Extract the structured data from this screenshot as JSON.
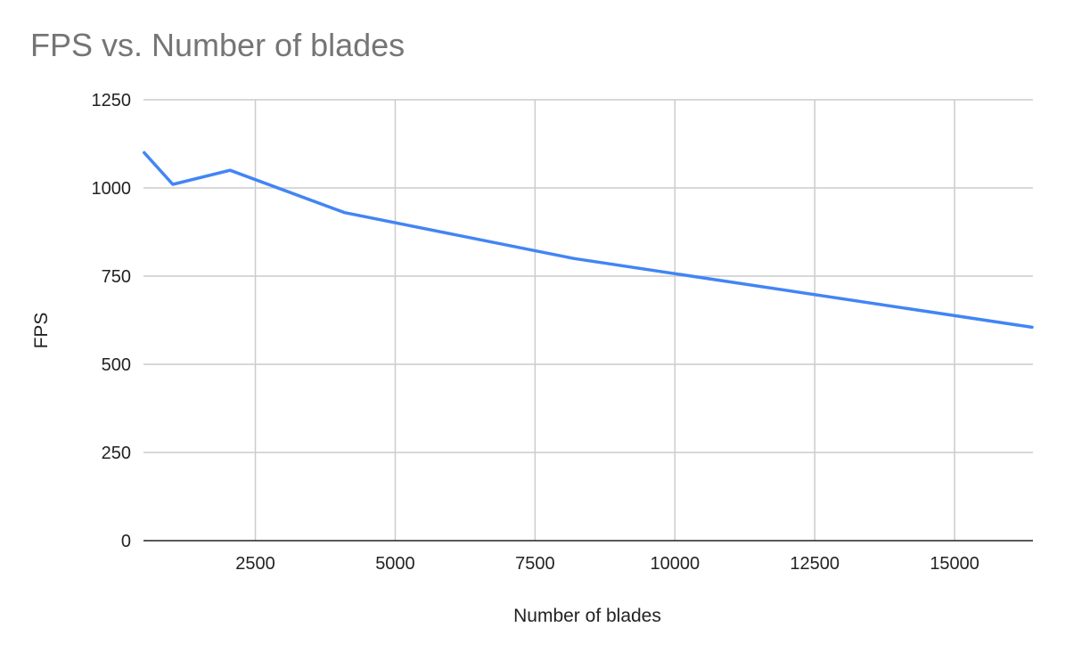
{
  "chart_data": {
    "type": "line",
    "title": "FPS vs. Number of blades",
    "xlabel": "Number of blades",
    "ylabel": "FPS",
    "xlim": [
      500,
      16400
    ],
    "ylim": [
      0,
      1250
    ],
    "x_ticks": [
      2500,
      5000,
      7500,
      10000,
      12500,
      15000
    ],
    "y_ticks": [
      0,
      250,
      500,
      750,
      1000,
      1250
    ],
    "grid": true,
    "legend": "none",
    "series": [
      {
        "color": "#4285f4",
        "points": [
          {
            "x": 512,
            "y": 1100
          },
          {
            "x": 1024,
            "y": 1010
          },
          {
            "x": 2048,
            "y": 1050
          },
          {
            "x": 4096,
            "y": 930
          },
          {
            "x": 8192,
            "y": 800
          },
          {
            "x": 16384,
            "y": 605
          }
        ]
      }
    ]
  }
}
